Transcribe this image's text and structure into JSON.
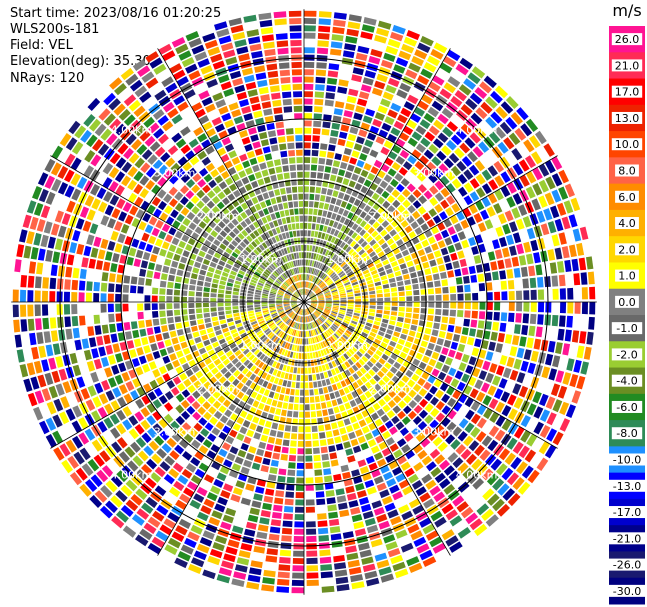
{
  "header": {
    "start_time": "Start time: 2023/08/16 01:20:25",
    "instrument": "WLS200s-181",
    "field": "Field: VEL",
    "elevation": "Elevation(deg): 35.30",
    "nrays": "NRays: 120"
  },
  "chart_data": {
    "type": "heatmap",
    "projection": "polar-ppi",
    "field": "VEL",
    "units": "m/s",
    "n_rays": 120,
    "elevation_deg": 35.3,
    "range_rings_km": [
      1.0,
      2.0,
      3.0,
      4.0
    ],
    "range_ring_labels": [
      "1.00km",
      "2.00km",
      "3.00km",
      "4.00km"
    ],
    "azimuth_spokes_deg": [
      0,
      30,
      60,
      90,
      120,
      150,
      180,
      210,
      240,
      270,
      300,
      330
    ],
    "max_range_km": 4.8,
    "colorbar": {
      "title": "m/s",
      "ticks": [
        "26.0",
        "21.0",
        "17.0",
        "13.0",
        "10.0",
        "8.0",
        "6.0",
        "4.0",
        "2.0",
        "1.0",
        "0.0",
        "-1.0",
        "-2.0",
        "-4.0",
        "-6.0",
        "-8.0",
        "-10.0",
        "-13.0",
        "-17.0",
        "-21.0",
        "-26.0",
        "-30.0"
      ],
      "colors": [
        "#ff1493",
        "#ff2b55",
        "#ff0000",
        "#ee2200",
        "#ff4500",
        "#ff6347",
        "#ff8c00",
        "#ffb000",
        "#ffd700",
        "#ffff00",
        "#808080",
        "#696969",
        "#9acd32",
        "#6b8e23",
        "#228b22",
        "#2e8b57",
        "#1e90ff",
        "#0000ff",
        "#0000cd",
        "#00008b",
        "#191970",
        "#000080"
      ]
    }
  }
}
